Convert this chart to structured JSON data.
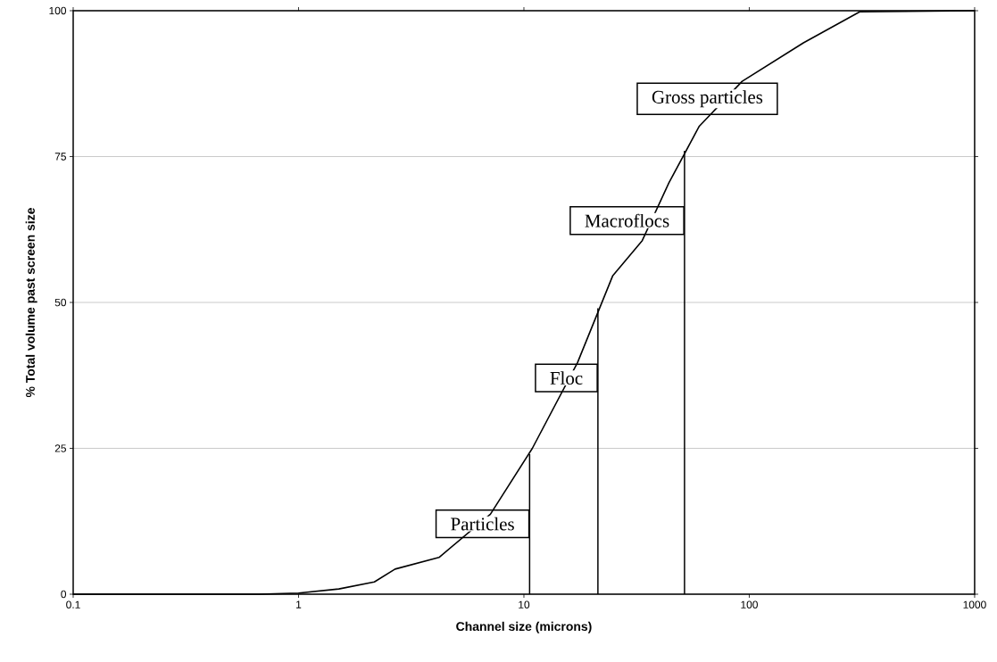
{
  "chart_data": {
    "type": "line",
    "xlabel": "Channel size (microns)",
    "ylabel": "% Total volume past screen size",
    "log": "x",
    "grid": "y",
    "legend": false,
    "xlim": [
      0.1,
      1000
    ],
    "xticks": [
      0.1,
      1,
      10,
      100,
      1000
    ],
    "ylim": [
      0,
      100
    ],
    "yticks": [
      0,
      25,
      50,
      75,
      100
    ],
    "series": [
      {
        "color": "#000000",
        "x": [
          0.1,
          0.667,
          1,
          1.51,
          2.17,
          2.68,
          4.2,
          7.1,
          10.9,
          17.3,
          24.8,
          33.5,
          44,
          60,
          93,
          174,
          309,
          1000
        ],
        "values": [
          0,
          0,
          0.2,
          0.9,
          2.1,
          4.3,
          6.3,
          13.7,
          25,
          39.7,
          54.6,
          60.6,
          70.5,
          80.2,
          87.9,
          94.5,
          99.8,
          100
        ]
      },
      {
        "name": "Particles",
        "color": "#000000",
        "x": [
          10.6,
          10.6
        ],
        "values": [
          0,
          24
        ]
      },
      {
        "name": "Floc",
        "color": "#000000",
        "x": [
          21.3,
          21.3
        ],
        "values": [
          0,
          49
        ]
      },
      {
        "name": "Macroflocs",
        "color": "#000000",
        "x": [
          51.6,
          51.6
        ],
        "values": [
          0,
          76
        ]
      }
    ],
    "annotations": [
      "Gross particles"
    ]
  }
}
